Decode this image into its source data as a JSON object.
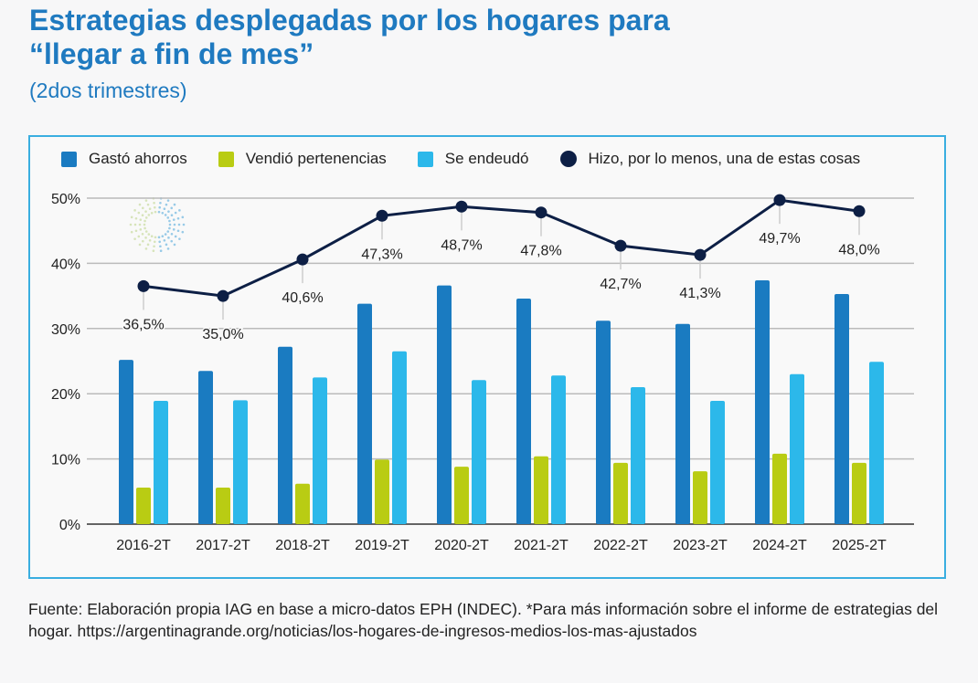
{
  "title": "Estrategias desplegadas por los hogares para “llegar a fin de mes”",
  "subtitle": "(2dos trimestres)",
  "source": "Fuente: Elaboración propia IAG en base a micro-datos EPH (INDEC). *Para más información sobre el informe de estrategias del hogar. https://argentinagrande.org/noticias/los-hogares-de-ingresos-medios-los-mas-ajustados",
  "chart_data": {
    "type": "bar+line",
    "categories": [
      "2016-2T",
      "2017-2T",
      "2018-2T",
      "2019-2T",
      "2020-2T",
      "2021-2T",
      "2022-2T",
      "2023-2T",
      "2024-2T",
      "2025-2T"
    ],
    "ylim": [
      0,
      50
    ],
    "yticks": [
      "0%",
      "10%",
      "20%",
      "30%",
      "40%",
      "50%"
    ],
    "grid": true,
    "legend_position": "top",
    "series": [
      {
        "name": "Gastó ahorros",
        "type": "bar",
        "color": "#1a7bc1",
        "values": [
          25.2,
          23.5,
          27.2,
          33.8,
          36.6,
          34.6,
          31.2,
          30.7,
          37.4,
          35.3
        ]
      },
      {
        "name": "Vendió pertenencias",
        "type": "bar",
        "color": "#b9cc13",
        "values": [
          5.6,
          5.6,
          6.2,
          9.9,
          8.8,
          10.4,
          9.4,
          8.1,
          10.8,
          9.4
        ]
      },
      {
        "name": "Se endeudó",
        "type": "bar",
        "color": "#2cb8ea",
        "values": [
          18.9,
          19.0,
          22.5,
          26.5,
          22.1,
          22.8,
          21.0,
          18.9,
          23.0,
          24.9
        ]
      },
      {
        "name": "Hizo, por lo menos, una de estas cosas",
        "type": "line",
        "color": "#0d1f45",
        "values": [
          36.5,
          35.0,
          40.6,
          47.3,
          48.7,
          47.8,
          42.7,
          41.3,
          49.7,
          48.0
        ],
        "labels": [
          "36,5%",
          "35,0%",
          "40,6%",
          "47,3%",
          "48,7%",
          "47,8%",
          "42,7%",
          "41,3%",
          "49,7%",
          "48,0%"
        ]
      }
    ]
  }
}
